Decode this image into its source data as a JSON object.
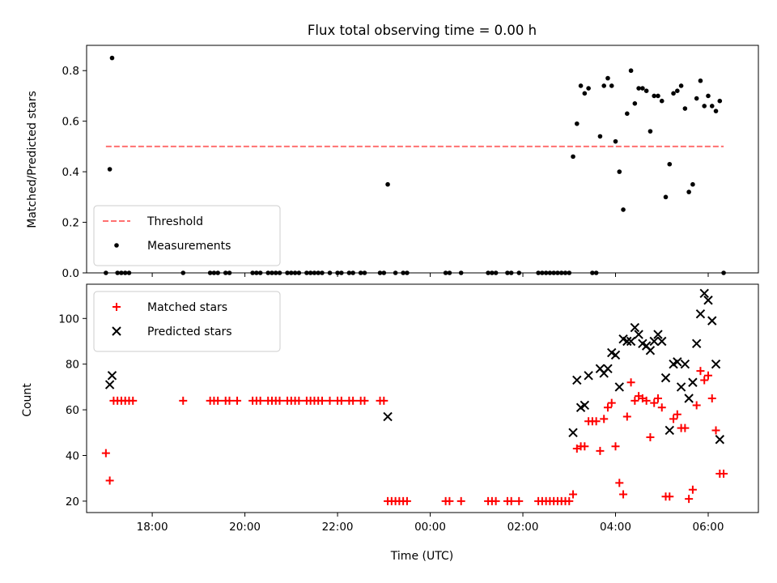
{
  "title": "Flux total observing time = 0.00 h",
  "xlabel": "Time (UTC)",
  "x_ticks": [
    "18:00",
    "20:00",
    "22:00",
    "00:00",
    "02:00",
    "04:00",
    "06:00"
  ],
  "colors": {
    "threshold": "#ff7070",
    "matched": "#ff0000",
    "predicted": "#000000",
    "measurement": "#000000"
  },
  "chart_data": [
    {
      "type": "scatter",
      "ylabel": "Matched/Predicted stars",
      "xlim": [
        "16:35",
        "07:05"
      ],
      "ylim": [
        0,
        0.9
      ],
      "y_ticks": [
        "0.0",
        "0.2",
        "0.4",
        "0.6",
        "0.8"
      ],
      "legend_position": "lower-left",
      "threshold": {
        "name": "Threshold",
        "value": 0.5,
        "x_range": [
          "17:00",
          "06:20"
        ]
      },
      "series": [
        {
          "name": "Measurements",
          "points": [
            [
              "17:00",
              0.0
            ],
            [
              "17:05",
              0.41
            ],
            [
              "17:08",
              0.85
            ],
            [
              "17:15",
              0.0
            ],
            [
              "17:20",
              0.0
            ],
            [
              "17:25",
              0.0
            ],
            [
              "17:30",
              0.0
            ],
            [
              "18:40",
              0.0
            ],
            [
              "19:15",
              0.0
            ],
            [
              "19:20",
              0.0
            ],
            [
              "19:25",
              0.0
            ],
            [
              "19:35",
              0.0
            ],
            [
              "19:40",
              0.0
            ],
            [
              "20:10",
              0.0
            ],
            [
              "20:15",
              0.0
            ],
            [
              "20:20",
              0.0
            ],
            [
              "20:30",
              0.0
            ],
            [
              "20:35",
              0.0
            ],
            [
              "20:40",
              0.0
            ],
            [
              "20:45",
              0.0
            ],
            [
              "20:55",
              0.0
            ],
            [
              "21:00",
              0.0
            ],
            [
              "21:05",
              0.0
            ],
            [
              "21:10",
              0.0
            ],
            [
              "21:20",
              0.0
            ],
            [
              "21:25",
              0.0
            ],
            [
              "21:30",
              0.0
            ],
            [
              "21:35",
              0.0
            ],
            [
              "21:40",
              0.0
            ],
            [
              "21:50",
              0.0
            ],
            [
              "22:00",
              0.0
            ],
            [
              "22:05",
              0.0
            ],
            [
              "22:15",
              0.0
            ],
            [
              "22:20",
              0.0
            ],
            [
              "22:30",
              0.0
            ],
            [
              "22:35",
              0.0
            ],
            [
              "22:55",
              0.0
            ],
            [
              "23:00",
              0.0
            ],
            [
              "23:05",
              0.35
            ],
            [
              "23:15",
              0.0
            ],
            [
              "23:25",
              0.0
            ],
            [
              "23:30",
              0.0
            ],
            [
              "00:20",
              0.0
            ],
            [
              "00:25",
              0.0
            ],
            [
              "00:40",
              0.0
            ],
            [
              "01:15",
              0.0
            ],
            [
              "01:20",
              0.0
            ],
            [
              "01:25",
              0.0
            ],
            [
              "01:40",
              0.0
            ],
            [
              "01:45",
              0.0
            ],
            [
              "01:55",
              0.0
            ],
            [
              "02:20",
              0.0
            ],
            [
              "02:25",
              0.0
            ],
            [
              "02:30",
              0.0
            ],
            [
              "02:35",
              0.0
            ],
            [
              "02:40",
              0.0
            ],
            [
              "02:45",
              0.0
            ],
            [
              "02:50",
              0.0
            ],
            [
              "02:55",
              0.0
            ],
            [
              "03:00",
              0.0
            ],
            [
              "03:05",
              0.46
            ],
            [
              "03:10",
              0.59
            ],
            [
              "03:15",
              0.74
            ],
            [
              "03:20",
              0.71
            ],
            [
              "03:25",
              0.73
            ],
            [
              "03:30",
              0.0
            ],
            [
              "03:35",
              0.0
            ],
            [
              "03:40",
              0.54
            ],
            [
              "03:45",
              0.74
            ],
            [
              "03:50",
              0.77
            ],
            [
              "03:55",
              0.74
            ],
            [
              "04:00",
              0.52
            ],
            [
              "04:05",
              0.4
            ],
            [
              "04:10",
              0.25
            ],
            [
              "04:15",
              0.63
            ],
            [
              "04:20",
              0.8
            ],
            [
              "04:25",
              0.67
            ],
            [
              "04:30",
              0.73
            ],
            [
              "04:35",
              0.73
            ],
            [
              "04:40",
              0.72
            ],
            [
              "04:45",
              0.56
            ],
            [
              "04:50",
              0.7
            ],
            [
              "04:55",
              0.7
            ],
            [
              "05:00",
              0.68
            ],
            [
              "05:05",
              0.3
            ],
            [
              "05:10",
              0.43
            ],
            [
              "05:15",
              0.71
            ],
            [
              "05:20",
              0.72
            ],
            [
              "05:25",
              0.74
            ],
            [
              "05:30",
              0.65
            ],
            [
              "05:35",
              0.32
            ],
            [
              "05:40",
              0.35
            ],
            [
              "05:45",
              0.69
            ],
            [
              "05:50",
              0.76
            ],
            [
              "05:55",
              0.66
            ],
            [
              "06:00",
              0.7
            ],
            [
              "06:05",
              0.66
            ],
            [
              "06:10",
              0.64
            ],
            [
              "06:15",
              0.68
            ],
            [
              "06:20",
              0.0
            ]
          ]
        }
      ]
    },
    {
      "type": "scatter",
      "ylabel": "Count",
      "xlim": [
        "16:35",
        "07:05"
      ],
      "ylim": [
        15,
        115
      ],
      "y_ticks": [
        "20",
        "40",
        "60",
        "80",
        "100"
      ],
      "legend_position": "upper-left",
      "series": [
        {
          "name": "Matched stars",
          "marker": "+",
          "points": [
            [
              "17:00",
              41
            ],
            [
              "17:05",
              29
            ],
            [
              "17:10",
              64
            ],
            [
              "17:15",
              64
            ],
            [
              "17:20",
              64
            ],
            [
              "17:25",
              64
            ],
            [
              "17:30",
              64
            ],
            [
              "17:35",
              64
            ],
            [
              "18:40",
              64
            ],
            [
              "19:15",
              64
            ],
            [
              "19:20",
              64
            ],
            [
              "19:25",
              64
            ],
            [
              "19:35",
              64
            ],
            [
              "19:40",
              64
            ],
            [
              "19:50",
              64
            ],
            [
              "20:10",
              64
            ],
            [
              "20:15",
              64
            ],
            [
              "20:20",
              64
            ],
            [
              "20:30",
              64
            ],
            [
              "20:35",
              64
            ],
            [
              "20:40",
              64
            ],
            [
              "20:45",
              64
            ],
            [
              "20:55",
              64
            ],
            [
              "21:00",
              64
            ],
            [
              "21:05",
              64
            ],
            [
              "21:10",
              64
            ],
            [
              "21:20",
              64
            ],
            [
              "21:25",
              64
            ],
            [
              "21:30",
              64
            ],
            [
              "21:35",
              64
            ],
            [
              "21:40",
              64
            ],
            [
              "21:50",
              64
            ],
            [
              "22:00",
              64
            ],
            [
              "22:05",
              64
            ],
            [
              "22:15",
              64
            ],
            [
              "22:20",
              64
            ],
            [
              "22:30",
              64
            ],
            [
              "22:35",
              64
            ],
            [
              "22:55",
              64
            ],
            [
              "23:00",
              64
            ],
            [
              "23:05",
              20
            ],
            [
              "23:10",
              20
            ],
            [
              "23:15",
              20
            ],
            [
              "23:20",
              20
            ],
            [
              "23:25",
              20
            ],
            [
              "23:30",
              20
            ],
            [
              "00:20",
              20
            ],
            [
              "00:25",
              20
            ],
            [
              "00:40",
              20
            ],
            [
              "01:15",
              20
            ],
            [
              "01:20",
              20
            ],
            [
              "01:25",
              20
            ],
            [
              "01:40",
              20
            ],
            [
              "01:45",
              20
            ],
            [
              "01:55",
              20
            ],
            [
              "02:20",
              20
            ],
            [
              "02:25",
              20
            ],
            [
              "02:30",
              20
            ],
            [
              "02:35",
              20
            ],
            [
              "02:40",
              20
            ],
            [
              "02:45",
              20
            ],
            [
              "02:50",
              20
            ],
            [
              "02:55",
              20
            ],
            [
              "03:00",
              20
            ],
            [
              "03:05",
              23
            ],
            [
              "03:10",
              43
            ],
            [
              "03:15",
              44
            ],
            [
              "03:20",
              44
            ],
            [
              "03:25",
              55
            ],
            [
              "03:30",
              55
            ],
            [
              "03:35",
              55
            ],
            [
              "03:40",
              42
            ],
            [
              "03:45",
              56
            ],
            [
              "03:50",
              61
            ],
            [
              "03:55",
              63
            ],
            [
              "04:00",
              44
            ],
            [
              "04:05",
              28
            ],
            [
              "04:10",
              23
            ],
            [
              "04:15",
              57
            ],
            [
              "04:20",
              72
            ],
            [
              "04:25",
              64
            ],
            [
              "04:30",
              66
            ],
            [
              "04:35",
              65
            ],
            [
              "04:40",
              64
            ],
            [
              "04:45",
              48
            ],
            [
              "04:50",
              63
            ],
            [
              "04:55",
              65
            ],
            [
              "05:00",
              61
            ],
            [
              "05:05",
              22
            ],
            [
              "05:10",
              22
            ],
            [
              "05:15",
              56
            ],
            [
              "05:20",
              58
            ],
            [
              "05:25",
              52
            ],
            [
              "05:30",
              52
            ],
            [
              "05:35",
              21
            ],
            [
              "05:40",
              25
            ],
            [
              "05:45",
              62
            ],
            [
              "05:50",
              77
            ],
            [
              "05:55",
              73
            ],
            [
              "06:00",
              75
            ],
            [
              "06:05",
              65
            ],
            [
              "06:10",
              51
            ],
            [
              "06:15",
              32
            ],
            [
              "06:20",
              32
            ]
          ]
        },
        {
          "name": "Predicted stars",
          "marker": "x",
          "points": [
            [
              "17:05",
              71
            ],
            [
              "17:08",
              75
            ],
            [
              "23:05",
              57
            ],
            [
              "03:05",
              50
            ],
            [
              "03:10",
              73
            ],
            [
              "03:15",
              61
            ],
            [
              "03:20",
              62
            ],
            [
              "03:25",
              75
            ],
            [
              "03:40",
              78
            ],
            [
              "03:45",
              76
            ],
            [
              "03:50",
              78
            ],
            [
              "03:55",
              85
            ],
            [
              "04:00",
              84
            ],
            [
              "04:05",
              70
            ],
            [
              "04:10",
              91
            ],
            [
              "04:15",
              90
            ],
            [
              "04:20",
              90
            ],
            [
              "04:25",
              96
            ],
            [
              "04:30",
              93
            ],
            [
              "04:35",
              89
            ],
            [
              "04:40",
              88
            ],
            [
              "04:45",
              86
            ],
            [
              "04:50",
              90
            ],
            [
              "04:55",
              93
            ],
            [
              "05:00",
              90
            ],
            [
              "05:05",
              74
            ],
            [
              "05:10",
              51
            ],
            [
              "05:15",
              80
            ],
            [
              "05:20",
              81
            ],
            [
              "05:25",
              70
            ],
            [
              "05:30",
              80
            ],
            [
              "05:35",
              65
            ],
            [
              "05:40",
              72
            ],
            [
              "05:45",
              89
            ],
            [
              "05:50",
              102
            ],
            [
              "05:55",
              111
            ],
            [
              "06:00",
              108
            ],
            [
              "06:05",
              99
            ],
            [
              "06:10",
              80
            ],
            [
              "06:15",
              47
            ]
          ]
        }
      ]
    }
  ]
}
